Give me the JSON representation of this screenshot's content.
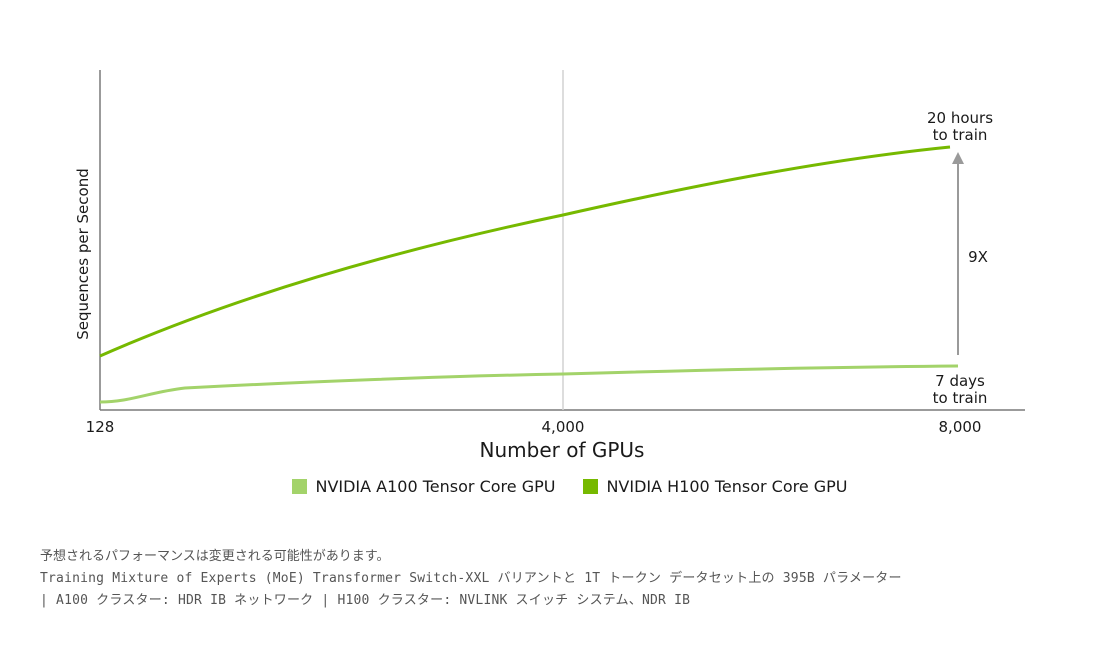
{
  "chart_data": {
    "type": "line",
    "xlabel": "Number of GPUs",
    "ylabel": "Sequences per Second",
    "x_tick_labels": [
      "128",
      "4,000",
      "8,000"
    ],
    "x": [
      128,
      4000,
      8000
    ],
    "series": [
      {
        "name": "NVIDIA A100 Tensor Core GPU",
        "color": "#a3d36a",
        "values": [
          1.0,
          1.9,
          2.0
        ]
      },
      {
        "name": "NVIDIA H100 Tensor Core GPU",
        "color": "#76b900",
        "values": [
          2.9,
          10.0,
          14.0
        ]
      }
    ],
    "grid": "vertical gridline at 4,000",
    "annotations": {
      "h100_end": [
        "20 hours",
        "to train"
      ],
      "a100_end": [
        "7 days",
        "to train"
      ],
      "speedup": "9X"
    },
    "legend_position": "bottom"
  },
  "footnote": {
    "line1": "予想されるパフォーマンスは変更される可能性があります。",
    "line2": "Training Mixture of Experts (MoE) Transformer Switch-XXL バリアントと 1T トークン データセット上の 395B パラメーター",
    "line3": "| A100 クラスター: HDR IB ネットワーク | H100 クラスター: NVLINK スイッチ システム、NDR IB"
  }
}
